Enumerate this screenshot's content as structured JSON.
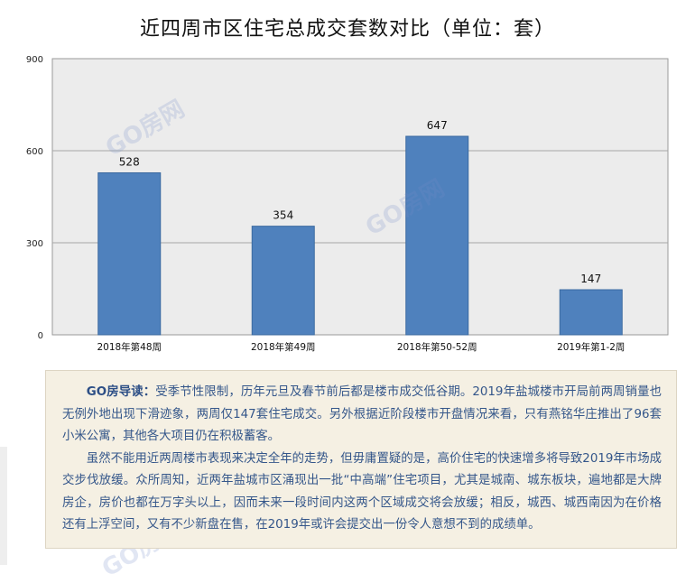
{
  "page": {
    "title": "近四周市区住宅总成交套数对比（单位：套）",
    "watermark": "GO房网"
  },
  "chart_data": {
    "type": "bar",
    "categories": [
      "2018年第48周",
      "2018年第49周",
      "2018年第50-52周",
      "2019年第1-2周"
    ],
    "values": [
      528,
      354,
      647,
      147
    ],
    "ylim": [
      0,
      900
    ],
    "yticks": [
      0,
      300,
      600,
      900
    ],
    "data_labels": [
      "528",
      "354",
      "647",
      "147"
    ],
    "grid": true,
    "bar_color": "#4f81bd",
    "plot_background": "#ececec",
    "title": "",
    "xlabel": "",
    "ylabel": ""
  },
  "commentary": {
    "lead": "GO房导读：",
    "paragraph1": "受季节性限制，历年元旦及春节前后都是楼市成交低谷期。2019年盐城楼市开局前两周销量也无例外地出现下滑迹象，两周仅147套住宅成交。另外根据近阶段楼市开盘情况来看，只有燕铭华庄推出了96套小米公寓，其他各大项目仍在积极蓄客。",
    "paragraph2": "虽然不能用近两周楼市表现来决定全年的走势，但毋庸置疑的是，高价住宅的快速增多将导致2019年市场成交步伐放缓。众所周知，近两年盐城市区涌现出一批“中高端”住宅项目，尤其是城南、城东板块，遍地都是大牌房企，房价也都在万字头以上，因而未来一段时间内这两个区域成交将会放缓；相反，城西、城西南因为在价格还有上浮空间，又有不少新盘在售，在2019年或许会提交出一份令人意想不到的成绩单。"
  }
}
